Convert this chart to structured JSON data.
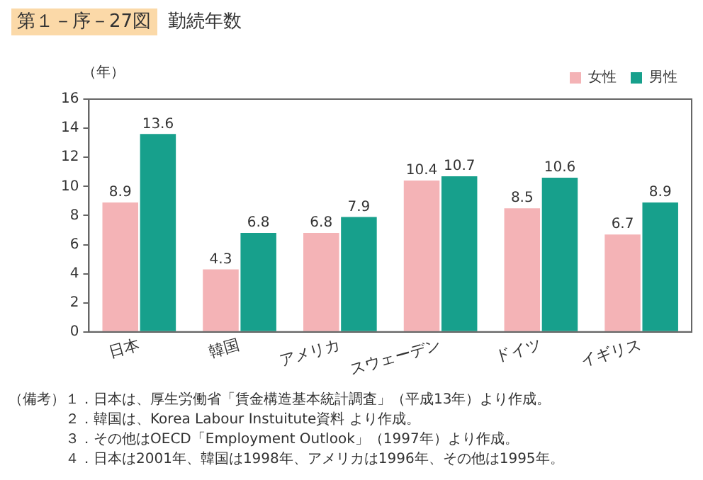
{
  "chart_data": {
    "type": "bar",
    "title": "第１－序－27図",
    "subtitle": "勤続年数",
    "ylabel": "（年）",
    "categories": [
      "日本",
      "韓国",
      "アメリカ",
      "スウェーデン",
      "ドイツ",
      "イギリス"
    ],
    "series": [
      {
        "name": "女性",
        "color": "#f4b3b6",
        "values": [
          8.9,
          4.3,
          6.8,
          10.4,
          8.5,
          6.7
        ]
      },
      {
        "name": "男性",
        "color": "#17a08c",
        "values": [
          13.6,
          6.8,
          7.9,
          10.7,
          10.6,
          8.9
        ]
      }
    ],
    "ylim": [
      0,
      16
    ],
    "yticks": [
      0,
      2,
      4,
      6,
      8,
      10,
      12,
      14,
      16
    ],
    "grid": false,
    "legend": "top right",
    "data_labels": true,
    "annotations": [
      "（備考）１．日本は、厚生労働省「賃金構造基本統計調査」（平成13年）より作成。",
      "２．韓国は、Korea Labour Instuitute資料 より作成。",
      "３．その他はOECD「Employment Outlook」（1997年）より作成。",
      "４．日本は2001年、韓国は1998年、アメリカは1996年、その他は1995年。"
    ]
  }
}
